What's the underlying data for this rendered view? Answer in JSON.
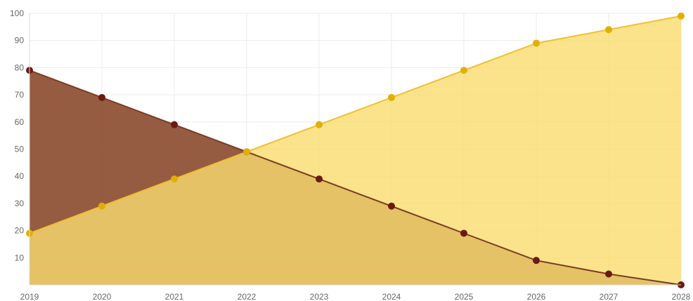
{
  "chart_data": {
    "type": "area",
    "title": "",
    "xlabel": "",
    "ylabel": "",
    "x": [
      "2019",
      "2020",
      "2021",
      "2022",
      "2023",
      "2024",
      "2025",
      "2026",
      "2027",
      "2028"
    ],
    "ylim": [
      0,
      100
    ],
    "yticks": [
      10,
      20,
      30,
      40,
      50,
      60,
      70,
      80,
      90,
      100
    ],
    "grid": true,
    "legend": "none",
    "series": [
      {
        "values": [
          79,
          69,
          59,
          49,
          39,
          29,
          19,
          9,
          4,
          0
        ],
        "fill_color": "#8b4a2e",
        "line_color": "#7a3b22",
        "point_color": "#6b1a10"
      },
      {
        "values": [
          19,
          29,
          39,
          49,
          59,
          69,
          79,
          89,
          94,
          99
        ],
        "fill_color": "#f9dc6e",
        "line_color": "#f0c030",
        "point_color": "#e0b000"
      }
    ]
  }
}
